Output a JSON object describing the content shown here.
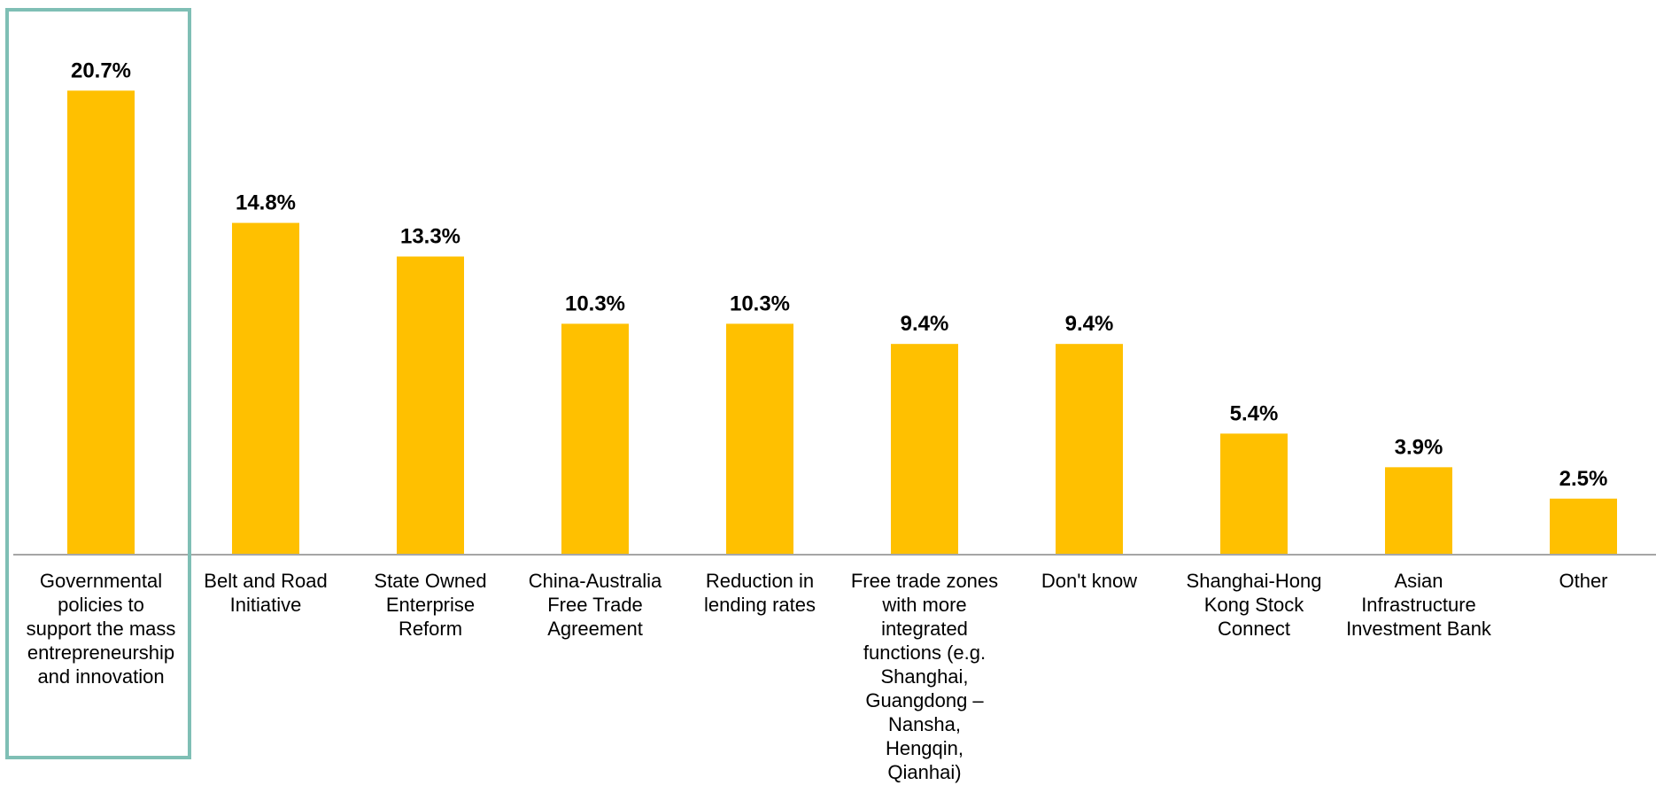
{
  "chart_data": {
    "type": "bar",
    "title": "",
    "xlabel": "",
    "ylabel": "",
    "ylim": [
      0,
      25
    ],
    "grid": false,
    "legend": "none",
    "bar_color": "#ffc000",
    "highlight_color": "#7fbfb5",
    "highlighted_category_index": 0,
    "categories": [
      [
        "Governmental",
        "policies to",
        "support the mass",
        "entrepreneurship",
        "and innovation"
      ],
      [
        "Belt and Road",
        "Initiative"
      ],
      [
        "State Owned",
        "Enterprise",
        "Reform"
      ],
      [
        "China-Australia",
        "Free Trade",
        "Agreement"
      ],
      [
        "Reduction in",
        "lending rates"
      ],
      [
        "Free trade zones",
        "with more",
        "integrated",
        "functions (e.g.",
        "Shanghai,",
        "Guangdong –",
        "Nansha,",
        "Hengqin,",
        "Qianhai)"
      ],
      [
        "Don't know"
      ],
      [
        "Shanghai-Hong",
        "Kong Stock",
        "Connect"
      ],
      [
        "Asian",
        "Infrastructure",
        "Investment Bank"
      ],
      [
        "Other"
      ]
    ],
    "values": [
      20.7,
      14.8,
      13.3,
      10.3,
      10.3,
      9.4,
      9.4,
      5.4,
      3.9,
      2.5
    ],
    "value_labels": [
      "20.7%",
      "14.8%",
      "13.3%",
      "10.3%",
      "10.3%",
      "9.4%",
      "9.4%",
      "5.4%",
      "3.9%",
      "2.5%"
    ]
  }
}
